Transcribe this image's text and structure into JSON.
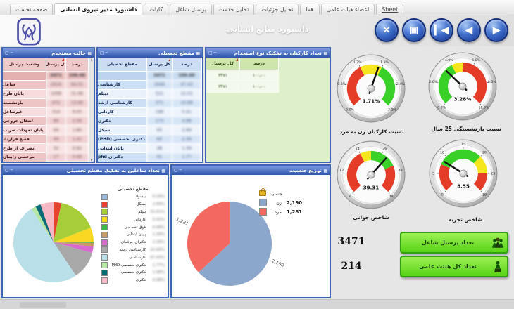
{
  "header": {
    "title": "داشبورد منابع انسانی"
  },
  "tabs": [
    {
      "label": "صفحه نخست",
      "active": false
    },
    {
      "label": "داشبورد مدیر نیروی انسانی",
      "active": true
    },
    {
      "label": "کلیات",
      "active": false
    },
    {
      "label": "پرسنل شاغل",
      "active": false
    },
    {
      "label": "تحلیل خدمت",
      "active": false
    },
    {
      "label": "تحلیل جزئیات",
      "active": false
    },
    {
      "label": "هما",
      "active": false
    },
    {
      "label": "اعضاء هیات علمی",
      "active": false
    },
    {
      "label": "Sheet",
      "active": false,
      "underline": true
    }
  ],
  "nav_buttons": [
    {
      "name": "close",
      "glyph": "✕"
    },
    {
      "name": "zoom",
      "glyph": "▣"
    },
    {
      "name": "first",
      "glyph": "▎◀"
    },
    {
      "name": "previous",
      "glyph": "◀"
    },
    {
      "name": "next",
      "glyph": "▶"
    }
  ],
  "titlebar_icons": [
    "▢",
    "─"
  ],
  "chart_icon_glyph": "▦",
  "scroll_glyphs": {
    "up": "▲",
    "down": "▼"
  },
  "panels": {
    "employment_status": {
      "title": "حالت مستخدم",
      "numbers_blurred_in_source": true,
      "columns": [
        {
          "label": "وضعیت پرسنل"
        },
        {
          "label": "کل پرسنل",
          "sort": true
        },
        {
          "label": "درصد"
        }
      ],
      "rows": [
        {
          "label": "",
          "total": "3471",
          "percent": "100.00",
          "is_total": true
        },
        {
          "label": "شاغل",
          "total": "2916",
          "percent": "84.01"
        },
        {
          "label": "پایان طرح",
          "total": "1099",
          "percent": "31.66"
        },
        {
          "label": "بازنشسته",
          "total": "472",
          "percent": "13.60"
        },
        {
          "label": "غیرشاغل",
          "total": "314",
          "percent": "9.05"
        },
        {
          "label": "انتقال خروجی",
          "total": "89",
          "percent": "2.56"
        },
        {
          "label": "پایان تعهدات ضریب",
          "total": "64",
          "percent": "1.84"
        },
        {
          "label": "فسخ قرارداد",
          "total": "49",
          "percent": "1.41"
        },
        {
          "label": "انصراف از طرح",
          "total": "32",
          "percent": "0.92"
        },
        {
          "label": "مرخصی زایمان",
          "total": "17",
          "percent": "0.49"
        }
      ]
    },
    "education": {
      "title": "مقطع تحصیلی",
      "numbers_blurred_in_source": true,
      "columns": [
        {
          "label": "مقطع تحصیلی"
        },
        {
          "label": "کل پرسنل",
          "sort": true
        },
        {
          "label": "درصد"
        }
      ],
      "rows": [
        {
          "label": "",
          "total": "3471",
          "percent": "100.00",
          "is_total": true
        },
        {
          "label": "کارشناسی",
          "total": "1646",
          "percent": "47.43"
        },
        {
          "label": "دیپلم",
          "total": "521",
          "percent": "15.01"
        },
        {
          "label": "کارشناسی ارشد",
          "total": "371",
          "percent": "10.69"
        },
        {
          "label": "کاردانی",
          "total": "188",
          "percent": "5.41"
        },
        {
          "label": "دکتری",
          "total": "173",
          "percent": "4.98"
        },
        {
          "label": "سیکل",
          "total": "93",
          "percent": "2.69"
        },
        {
          "label": "دکتری تخصصی (PHD)",
          "total": "83",
          "percent": "2.39"
        },
        {
          "label": "پایان ابتدایی",
          "total": "48",
          "percent": "1.39"
        },
        {
          "label": "دکترای phd",
          "total": "61",
          "percent": "1.77"
        }
      ]
    },
    "employment_type": {
      "title": "تعداد کارکنان به تفکیک نوع استخدام",
      "columns": [
        {
          "label": "کل پرسنل",
          "sort": true
        },
        {
          "label": "درصد"
        }
      ],
      "rows": [
        {
          "total": "۳۴۷۱",
          "percent": "۱۰۰٫۰۰"
        },
        {
          "total": "۳۴۷۱",
          "percent": "۱۰۰٫۰۰"
        }
      ]
    },
    "education_pie": {
      "title": "تعداد شاغلین به تفکیک مقطع تحصیلی",
      "legend_title": "مقطع تحصیلی"
    },
    "gender_pie": {
      "title": "توزیع جنسیت",
      "legend_title": "جنسیت"
    }
  },
  "counters": [
    {
      "value": "3471",
      "button_label": "تعداد پرسنل شاغل",
      "icon": "people-group-icon"
    },
    {
      "value": "214",
      "button_label": "تعداد کل هیئت علمی",
      "icon": "lecturer-icon"
    }
  ],
  "chart_data": [
    {
      "type": "pie",
      "id": "education_pie",
      "title": "تعداد شاغلین به تفکیک مقطع تحصیلی",
      "legend_title": "مقطع تحصیلی",
      "legend_percents_blurred_in_source": true,
      "slices": [
        {
          "label": "بیسواد",
          "value": 0.29,
          "percent_label": "0.29%",
          "color": "#9db7d8"
        },
        {
          "label": "سیکل",
          "value": 2.69,
          "percent_label": "2.69%",
          "color": "#e8432e"
        },
        {
          "label": "دیپلم",
          "value": 15.01,
          "percent_label": "15.01%",
          "color": "#a6ce39"
        },
        {
          "label": "کاردانی",
          "value": 5.41,
          "percent_label": "5.41%",
          "color": "#f8d823"
        },
        {
          "label": "فوق تخصصی",
          "value": 0.49,
          "percent_label": "0.49%",
          "color": "#43b649"
        },
        {
          "label": "پایان ابتدایی",
          "value": 1.39,
          "percent_label": "1.39%",
          "color": "#c79a67"
        },
        {
          "label": "دکترای حرفه‌ای",
          "value": 2.39,
          "percent_label": "2.39%",
          "color": "#d869cf"
        },
        {
          "label": "کارشناسی ارشد",
          "value": 10.69,
          "percent_label": "10.69%",
          "color": "#a8a8a8"
        },
        {
          "label": "کارشناسی",
          "value": 47.43,
          "percent_label": "47.43%",
          "color": "#b9dfe8"
        },
        {
          "label": "دکتری تخصصی PHD",
          "value": 1.77,
          "percent_label": "1.77%",
          "color": "#b3e6a1"
        },
        {
          "label": "دکتری تخصصی",
          "value": 1.96,
          "percent_label": "1.96%",
          "color": "#0c6a78"
        },
        {
          "label": "دکتری",
          "value": 4.98,
          "percent_label": "4.98%",
          "color": "#f5b8c4"
        }
      ]
    },
    {
      "type": "pie",
      "id": "gender_pie",
      "title": "توزیع جنسیت",
      "legend_title": "جنسیت",
      "slices": [
        {
          "label": "زن",
          "value": 2190,
          "display": "2,190",
          "color": "#8ba7cb"
        },
        {
          "label": "مرد",
          "value": 1281,
          "display": "1,281",
          "color": "#f4695f"
        }
      ]
    },
    {
      "type": "gauge",
      "caption": "نسبت کارکنان زن به مرد",
      "value": 1.71,
      "display": "1.71%",
      "min": 0,
      "max": 3,
      "tick_labels": [
        "0.0%",
        "0.6%",
        "1.2%",
        "1.8%",
        "2.4%",
        "3.0%"
      ],
      "zones": [
        {
          "from": 0,
          "to": 1.2,
          "color": "#e53c28"
        },
        {
          "from": 1.2,
          "to": 1.8,
          "color": "#f6e620"
        },
        {
          "from": 1.8,
          "to": 3,
          "color": "#39d028"
        }
      ]
    },
    {
      "type": "gauge",
      "caption": "نسبت بازنشستگی 25 سال",
      "value": 3.28,
      "display": "3.28%",
      "min": 0,
      "max": 10,
      "tick_labels": [
        "0.0%",
        "2.0%",
        "4.0%",
        "6.0%",
        "8.0%",
        "10.0%"
      ],
      "zones": [
        {
          "from": 0,
          "to": 4,
          "color": "#39d028"
        },
        {
          "from": 4,
          "to": 5,
          "color": "#f6e620"
        },
        {
          "from": 5,
          "to": 10,
          "color": "#e53c28"
        }
      ]
    },
    {
      "type": "gauge",
      "caption": "شاخص جوانی",
      "value": 39.31,
      "display": "39.31",
      "min": 0,
      "max": 60,
      "tick_labels": [
        "0",
        "12",
        "24",
        "36",
        "48",
        "60"
      ],
      "zones": [
        {
          "from": 0,
          "to": 24,
          "color": "#e53c28"
        },
        {
          "from": 24,
          "to": 30,
          "color": "#f6e620"
        },
        {
          "from": 30,
          "to": 45,
          "color": "#39d028"
        },
        {
          "from": 45,
          "to": 60,
          "color": "#e53c28"
        }
      ]
    },
    {
      "type": "gauge",
      "caption": "شاخص تجربه",
      "value": 8.55,
      "display": "8.55",
      "min": 0,
      "max": 30,
      "tick_labels": [
        "0",
        "5",
        "10",
        "15",
        "20",
        "25",
        "30"
      ],
      "zones": [
        {
          "from": 0,
          "to": 7.5,
          "color": "#e53c28"
        },
        {
          "from": 7.5,
          "to": 20,
          "color": "#39d028"
        },
        {
          "from": 20,
          "to": 25,
          "color": "#f6e620"
        },
        {
          "from": 25,
          "to": 30,
          "color": "#e53c28"
        }
      ]
    }
  ]
}
